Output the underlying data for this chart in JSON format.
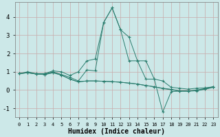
{
  "xlabel": "Humidex (Indice chaleur)",
  "line_color": "#2a7d6e",
  "marker": "+",
  "background_color": "#cce8e8",
  "grid_color_major": "#c8b8b8",
  "grid_color_minor": "#ddd0d0",
  "ylim": [
    -1.5,
    4.8
  ],
  "xlim": [
    -0.5,
    23.5
  ],
  "yticks": [
    -1,
    0,
    1,
    2,
    3,
    4
  ],
  "xticks": [
    0,
    1,
    2,
    3,
    4,
    5,
    6,
    7,
    8,
    9,
    10,
    11,
    12,
    13,
    14,
    15,
    16,
    17,
    18,
    19,
    20,
    21,
    22,
    23
  ],
  "xtick_labels": [
    "0",
    "1",
    "2",
    "3",
    "4",
    "5",
    "6",
    "7",
    "8",
    "9",
    "10",
    "11",
    "12",
    "13",
    "14",
    "15",
    "16",
    "17",
    "18",
    "19",
    "20",
    "21",
    "22",
    "23"
  ],
  "lines": [
    {
      "x": [
        0,
        1,
        2,
        3,
        4,
        5,
        6,
        7,
        8,
        9,
        10,
        11,
        12,
        13,
        14,
        15,
        16,
        17,
        18,
        19,
        20,
        21,
        22,
        23
      ],
      "y": [
        0.9,
        1.0,
        0.9,
        0.9,
        1.05,
        1.0,
        0.8,
        1.0,
        1.6,
        1.7,
        3.7,
        4.5,
        3.3,
        2.9,
        1.6,
        1.6,
        0.6,
        0.5,
        0.15,
        0.1,
        0.05,
        0.1,
        0.12,
        0.18
      ]
    },
    {
      "x": [
        0,
        1,
        2,
        3,
        4,
        5,
        6,
        7,
        8,
        9,
        10,
        11,
        12,
        13,
        14,
        15,
        16,
        17,
        18,
        19,
        20,
        21,
        22,
        23
      ],
      "y": [
        0.9,
        0.95,
        0.88,
        0.88,
        1.0,
        0.85,
        0.7,
        0.5,
        1.1,
        1.05,
        3.7,
        4.5,
        3.3,
        1.6,
        1.6,
        0.6,
        0.6,
        -1.2,
        -0.08,
        -0.06,
        -0.06,
        0.0,
        0.08,
        0.18
      ]
    },
    {
      "x": [
        0,
        1,
        2,
        3,
        4,
        5,
        6,
        7,
        8,
        9,
        10,
        11,
        12,
        13,
        14,
        15,
        16,
        17,
        18,
        19,
        20,
        21,
        22,
        23
      ],
      "y": [
        0.9,
        0.95,
        0.88,
        0.85,
        0.95,
        0.82,
        0.6,
        0.45,
        0.5,
        0.5,
        0.48,
        0.46,
        0.43,
        0.38,
        0.33,
        0.25,
        0.18,
        0.08,
        0.02,
        -0.06,
        -0.06,
        -0.04,
        0.04,
        0.15
      ]
    },
    {
      "x": [
        0,
        1,
        2,
        3,
        4,
        5,
        6,
        7,
        8,
        9,
        10,
        11,
        12,
        13,
        14,
        15,
        16,
        17,
        18,
        19,
        20,
        21,
        22,
        23
      ],
      "y": [
        0.9,
        0.95,
        0.88,
        0.85,
        0.95,
        0.82,
        0.6,
        0.45,
        0.5,
        0.5,
        0.48,
        0.46,
        0.43,
        0.38,
        0.33,
        0.25,
        0.18,
        0.1,
        0.04,
        -0.04,
        -0.04,
        -0.02,
        0.06,
        0.18
      ]
    }
  ]
}
